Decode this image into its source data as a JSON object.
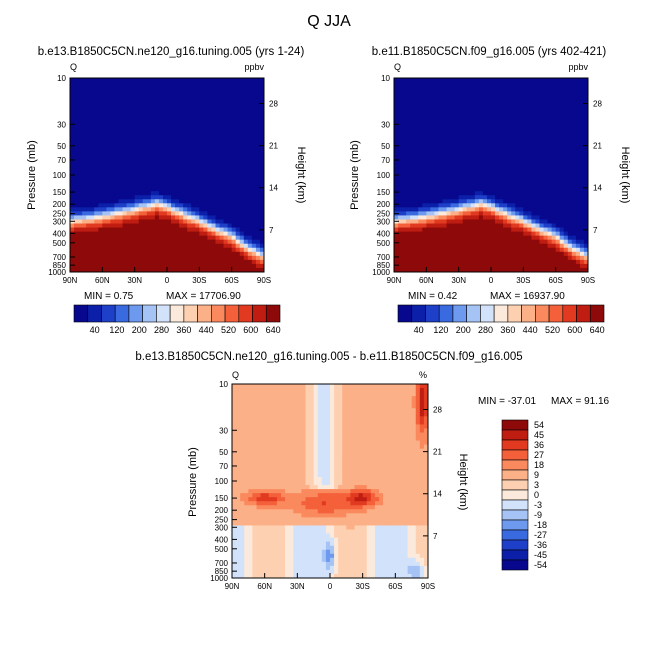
{
  "title": "Q JJA",
  "palette": {
    "diverging": [
      "#08088e",
      "#0b1fa8",
      "#1e3fc8",
      "#3a6ae0",
      "#6d99ee",
      "#a6c3f5",
      "#d3e2fb",
      "#fbeadb",
      "#fdd0b1",
      "#fcb088",
      "#fa8a5e",
      "#f3603a",
      "#e13a20",
      "#bf1d12",
      "#8e0a0a"
    ]
  },
  "chart_data": [
    {
      "type": "heatmap",
      "title": "b.e13.B1850C5CN.ne120_g16.tuning.005 (yrs 1-24)",
      "variable_label": "Q",
      "units": "ppbv",
      "xlabel": "",
      "ylabel": "Pressure (mb)",
      "right_label": "Height (km)",
      "x_ticks": [
        "90N",
        "60N",
        "30N",
        "0",
        "30S",
        "60S",
        "90S"
      ],
      "y_ticks": [
        "10",
        "30",
        "50",
        "70",
        "100",
        "150",
        "200",
        "250",
        "300",
        "400",
        "500",
        "700",
        "850",
        "1000"
      ],
      "right_ticks": [
        "28",
        "21",
        "14",
        "7"
      ],
      "min": 0.75,
      "max": 17706.9,
      "min_text": "MIN =    0.75",
      "max_text": "MAX = 17706.90",
      "levels": [
        40,
        80,
        120,
        160,
        200,
        240,
        280,
        320,
        360,
        400,
        440,
        480,
        520,
        560,
        600,
        640
      ],
      "level_labels": [
        "40",
        "120",
        "200",
        "280",
        "360",
        "440",
        "520",
        "600",
        "640"
      ]
    },
    {
      "type": "heatmap",
      "title": "b.e11.B1850C5CN.f09_g16.005 (yrs 402-421)",
      "variable_label": "Q",
      "units": "ppbv",
      "xlabel": "",
      "ylabel": "Pressure (mb)",
      "right_label": "Height (km)",
      "x_ticks": [
        "90N",
        "60N",
        "30N",
        "0",
        "30S",
        "60S",
        "90S"
      ],
      "y_ticks": [
        "10",
        "30",
        "50",
        "70",
        "100",
        "150",
        "200",
        "250",
        "300",
        "400",
        "500",
        "700",
        "850",
        "1000"
      ],
      "right_ticks": [
        "28",
        "21",
        "14",
        "7"
      ],
      "min": 0.42,
      "max": 16937.9,
      "min_text": "MIN =    0.42",
      "max_text": "MAX = 16937.90",
      "levels": [
        40,
        80,
        120,
        160,
        200,
        240,
        280,
        320,
        360,
        400,
        440,
        480,
        520,
        560,
        600,
        640
      ],
      "level_labels": [
        "40",
        "120",
        "200",
        "280",
        "360",
        "440",
        "520",
        "600",
        "640"
      ]
    },
    {
      "type": "heatmap",
      "title": "b.e13.B1850C5CN.ne120_g16.tuning.005 - b.e11.B1850C5CN.f09_g16.005",
      "variable_label": "Q",
      "units": "%",
      "xlabel": "",
      "ylabel": "Pressure (mb)",
      "right_label": "Height (km)",
      "x_ticks": [
        "90N",
        "60N",
        "30N",
        "0",
        "30S",
        "60S",
        "90S"
      ],
      "y_ticks": [
        "10",
        "30",
        "50",
        "70",
        "100",
        "150",
        "200",
        "250",
        "300",
        "400",
        "500",
        "700",
        "850",
        "1000"
      ],
      "right_ticks": [
        "28",
        "21",
        "14",
        "7"
      ],
      "min": -37.01,
      "max": 91.16,
      "min_text": "MIN = -37.01",
      "max_text": "MAX =  91.16",
      "levels": [
        -54,
        -45,
        -36,
        -27,
        -18,
        -9,
        -3,
        0,
        3,
        9,
        18,
        27,
        36,
        45,
        54
      ],
      "level_labels": [
        "54",
        "45",
        "36",
        "27",
        "18",
        "9",
        "3",
        "0",
        "-3",
        "-9",
        "-18",
        "-27",
        "-36",
        "-45",
        "-54"
      ]
    }
  ]
}
